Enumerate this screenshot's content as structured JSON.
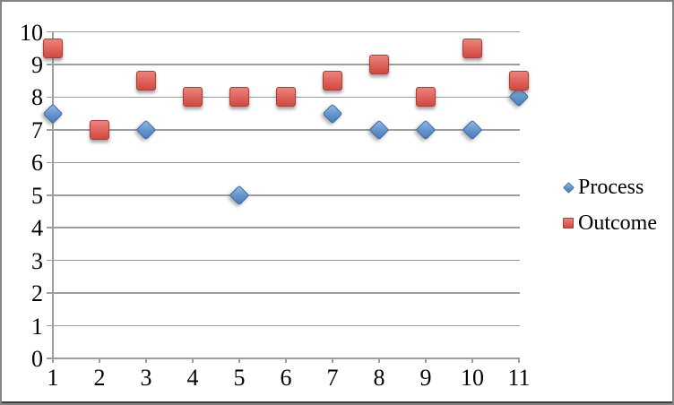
{
  "chart_data": {
    "type": "scatter",
    "title": "",
    "xlabel": "",
    "ylabel": "",
    "x": [
      1,
      2,
      3,
      4,
      5,
      6,
      7,
      8,
      9,
      10,
      11
    ],
    "xlim": [
      1,
      11
    ],
    "ylim": [
      0,
      10
    ],
    "x_tick_labels": [
      "1",
      "2",
      "3",
      "4",
      "5",
      "6",
      "7",
      "8",
      "9",
      "10",
      "11"
    ],
    "y_tick_labels": [
      "0",
      "1",
      "2",
      "3",
      "4",
      "5",
      "6",
      "7",
      "8",
      "9",
      "10"
    ],
    "grid": "horizontal",
    "legend_position": "right",
    "series": [
      {
        "name": "Process",
        "marker": "diamond",
        "color": "#4f81bd",
        "values": [
          7.5,
          null,
          7,
          null,
          5,
          null,
          7.5,
          7,
          7,
          7,
          8
        ]
      },
      {
        "name": "Outcome",
        "marker": "square",
        "color": "#c0504d",
        "values": [
          9.5,
          7,
          8.5,
          8,
          8,
          8,
          8.5,
          9,
          8,
          9.5,
          8.5
        ]
      }
    ]
  },
  "colors": {
    "gridline": "#9d9d9d",
    "chart_border": "#858585",
    "text": "#000000",
    "background": "#ffffff"
  }
}
